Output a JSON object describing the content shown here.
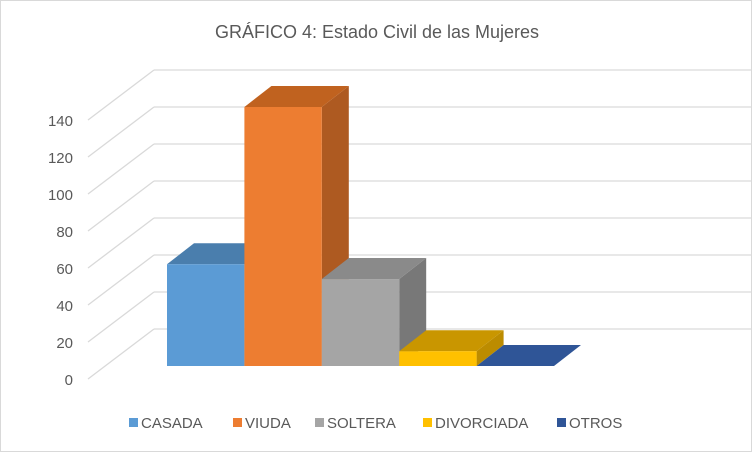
{
  "chart_data": {
    "type": "bar",
    "title": "GRÁFICO 4: Estado Civil de las Mujeres",
    "categories": [
      "CASADA",
      "VIUDA",
      "SOLTERA",
      "DIVORCIADA",
      "OTROS"
    ],
    "values": [
      55,
      140,
      47,
      8,
      0
    ],
    "colors": [
      "#5B9BD5",
      "#ED7D31",
      "#A5A5A5",
      "#FFC000",
      "#2F5597"
    ],
    "side_colors": [
      "#41719C",
      "#AE5A21",
      "#787878",
      "#BC8C00",
      "#203864"
    ],
    "top_colors": [
      "#4A7EAD",
      "#C0621F",
      "#8A8A8A",
      "#C99600",
      "#2F5597"
    ],
    "ylim": [
      0,
      140
    ],
    "yticks": [
      "0",
      "20",
      "40",
      "60",
      "80",
      "100",
      "120",
      "140"
    ],
    "grid": true,
    "legend": "bottom",
    "three_d": true
  }
}
